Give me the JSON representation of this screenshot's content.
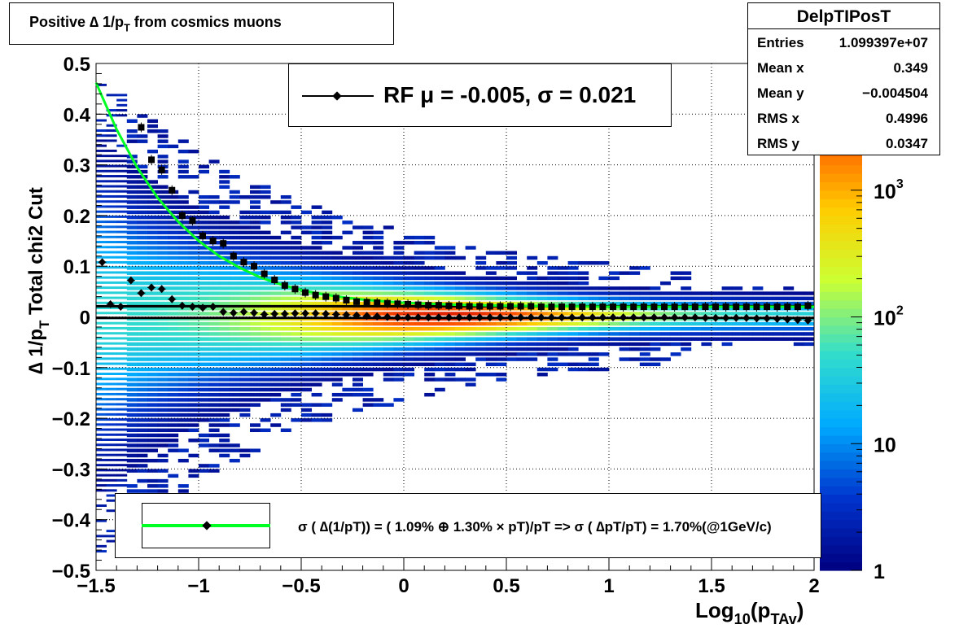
{
  "title": "Positive ∆ 1/p_T from cosmics muons",
  "title_parts": {
    "main": "Positive ∆ 1/p",
    "sub": "T",
    "tail": " from cosmics muons"
  },
  "stats": {
    "name": "DelpTIPosT",
    "rows": [
      {
        "label": "Entries",
        "value": "1.099397e+07"
      },
      {
        "label": "Mean x",
        "value": "0.349"
      },
      {
        "label": "Mean y",
        "value": "−0.004504"
      },
      {
        "label": "RMS x",
        "value": "0.4996"
      },
      {
        "label": "RMS y",
        "value": "0.0347"
      }
    ]
  },
  "rf_legend": "RF μ = -0.005, σ =   0.021",
  "resolution_legend": "σ ( ∆(1/pT)) = ( 1.09% ⊕  1.30% × pT)/pT => σ ( ∆pT/pT) =  1.70%(@1GeV/c)",
  "x_title_parts": {
    "a": "Log",
    "b": "10",
    "c": "(p",
    "d": "TAv",
    "e": ")"
  },
  "y_title_parts": {
    "a": "∆ 1/p",
    "b": "T",
    "c": "   Total chi2 Cut"
  },
  "colors": {
    "mean_markers": "#000000",
    "sigma_markers": "#000000",
    "fit_curve": "#00ff22",
    "reference_lines": "#000000",
    "palette": [
      "#000080",
      "#0033cc",
      "#00aaff",
      "#33ddcc",
      "#ccff33",
      "#ffcc00",
      "#ff5500",
      "#cc0000"
    ]
  },
  "chart_data": {
    "type": "heatmap",
    "xlim": [
      -1.5,
      2
    ],
    "ylim": [
      -0.5,
      0.5
    ],
    "x_ticks": [
      "−1.5",
      "−1",
      "−0.5",
      "0",
      "0.5",
      "1",
      "1.5",
      "2"
    ],
    "x_tick_values": [
      -1.5,
      -1,
      -0.5,
      0,
      0.5,
      1,
      1.5,
      2
    ],
    "y_ticks": [
      "0.5",
      "0.4",
      "0.3",
      "0.2",
      "0.1",
      "0",
      "−0.1",
      "−0.2",
      "−0.3",
      "−0.4",
      "−0.5"
    ],
    "y_tick_values": [
      0.5,
      0.4,
      0.3,
      0.2,
      0.1,
      0,
      -0.1,
      -0.2,
      -0.3,
      -0.4,
      -0.5
    ],
    "grid": true,
    "z_scale": "log",
    "z_range": [
      1,
      10000
    ],
    "z_ticks": [
      {
        "label": "1",
        "value": 1
      },
      {
        "label": "10",
        "value": 10
      },
      {
        "label": "10^2",
        "value": 100
      },
      {
        "label": "10^3",
        "value": 1000
      }
    ],
    "horizontal_lines": [
      0.021,
      -0.002
    ],
    "mean_profile": {
      "x": [
        -1.47,
        -1.43,
        -1.38,
        -1.33,
        -1.28,
        -1.23,
        -1.18,
        -1.13,
        -1.08,
        -1.03,
        -0.98,
        -0.93,
        -0.88,
        -0.83,
        -0.78,
        -0.73,
        -0.68,
        -0.63,
        -0.58,
        -0.53,
        -0.48,
        -0.43,
        -0.38,
        -0.33,
        -0.28,
        -0.23,
        -0.18,
        -0.13,
        -0.08,
        -0.03,
        0.02,
        0.07,
        0.12,
        0.17,
        0.22,
        0.27,
        0.32,
        0.37,
        0.42,
        0.47,
        0.52,
        0.57,
        0.62,
        0.67,
        0.72,
        0.77,
        0.82,
        0.87,
        0.92,
        0.97,
        1.02,
        1.07,
        1.12,
        1.17,
        1.22,
        1.27,
        1.32,
        1.37,
        1.42,
        1.47,
        1.52,
        1.57,
        1.62,
        1.67,
        1.72,
        1.77,
        1.82,
        1.87,
        1.92,
        1.97
      ],
      "y": [
        0.108,
        0.025,
        0.02,
        0.072,
        0.047,
        0.058,
        0.055,
        0.035,
        0.022,
        0.02,
        0.018,
        0.02,
        0.01,
        0.008,
        0.01,
        0.008,
        0.005,
        0.006,
        0.006,
        0.007,
        0.007,
        0.007,
        0.006,
        0.005,
        0.004,
        0.003,
        0.002,
        0.001,
        0.0,
        -0.001,
        -0.001,
        -0.001,
        -0.001,
        -0.001,
        -0.001,
        -0.001,
        -0.001,
        -0.001,
        -0.001,
        -0.001,
        -0.001,
        -0.001,
        -0.001,
        -0.001,
        -0.001,
        -0.001,
        -0.001,
        -0.001,
        -0.001,
        -0.001,
        -0.001,
        -0.001,
        -0.001,
        -0.001,
        -0.001,
        -0.001,
        -0.001,
        -0.001,
        -0.001,
        -0.002,
        -0.002,
        -0.002,
        -0.002,
        -0.002,
        -0.003,
        -0.003,
        -0.004,
        -0.005,
        -0.006,
        -0.007
      ]
    },
    "sigma_profile": {
      "x": [
        -1.28,
        -1.23,
        -1.18,
        -1.13,
        -1.08,
        -1.03,
        -0.98,
        -0.93,
        -0.88,
        -0.83,
        -0.78,
        -0.73,
        -0.68,
        -0.63,
        -0.58,
        -0.53,
        -0.48,
        -0.43,
        -0.38,
        -0.33,
        -0.28,
        -0.23,
        -0.18,
        -0.13,
        -0.08,
        -0.03,
        0.02,
        0.07,
        0.12,
        0.17,
        0.22,
        0.27,
        0.32,
        0.37,
        0.42,
        0.47,
        0.52,
        0.57,
        0.62,
        0.67,
        0.72,
        0.77,
        0.82,
        0.87,
        0.92,
        0.97,
        1.02,
        1.07,
        1.12,
        1.17,
        1.22,
        1.27,
        1.32,
        1.37,
        1.42,
        1.47,
        1.52,
        1.57,
        1.62,
        1.67,
        1.72,
        1.77,
        1.82,
        1.87,
        1.92,
        1.97
      ],
      "y": [
        0.374,
        0.31,
        0.29,
        0.25,
        0.2,
        0.19,
        0.16,
        0.15,
        0.145,
        0.12,
        0.108,
        0.1,
        0.085,
        0.073,
        0.062,
        0.055,
        0.048,
        0.043,
        0.04,
        0.037,
        0.033,
        0.03,
        0.029,
        0.028,
        0.027,
        0.026,
        0.025,
        0.024,
        0.023,
        0.023,
        0.022,
        0.022,
        0.021,
        0.021,
        0.021,
        0.021,
        0.021,
        0.021,
        0.021,
        0.02,
        0.02,
        0.02,
        0.02,
        0.02,
        0.02,
        0.02,
        0.02,
        0.02,
        0.02,
        0.02,
        0.02,
        0.02,
        0.02,
        0.02,
        0.02,
        0.02,
        0.02,
        0.02,
        0.02,
        0.02,
        0.02,
        0.02,
        0.02,
        0.02,
        0.02,
        0.022
      ]
    },
    "fit_curve": {
      "x": [
        -1.5,
        -1.4,
        -1.3,
        -1.2,
        -1.1,
        -1.0,
        -0.9,
        -0.8,
        -0.7,
        -0.6,
        -0.5,
        -0.4,
        -0.3,
        -0.2,
        -0.1,
        0.0,
        0.25,
        0.5,
        0.75,
        1.0,
        1.25,
        1.5,
        1.75,
        2.0
      ],
      "y": [
        0.462,
        0.37,
        0.295,
        0.235,
        0.188,
        0.15,
        0.12,
        0.097,
        0.078,
        0.064,
        0.053,
        0.045,
        0.039,
        0.034,
        0.031,
        0.028,
        0.024,
        0.022,
        0.021,
        0.02,
        0.02,
        0.02,
        0.02,
        0.02
      ]
    }
  }
}
